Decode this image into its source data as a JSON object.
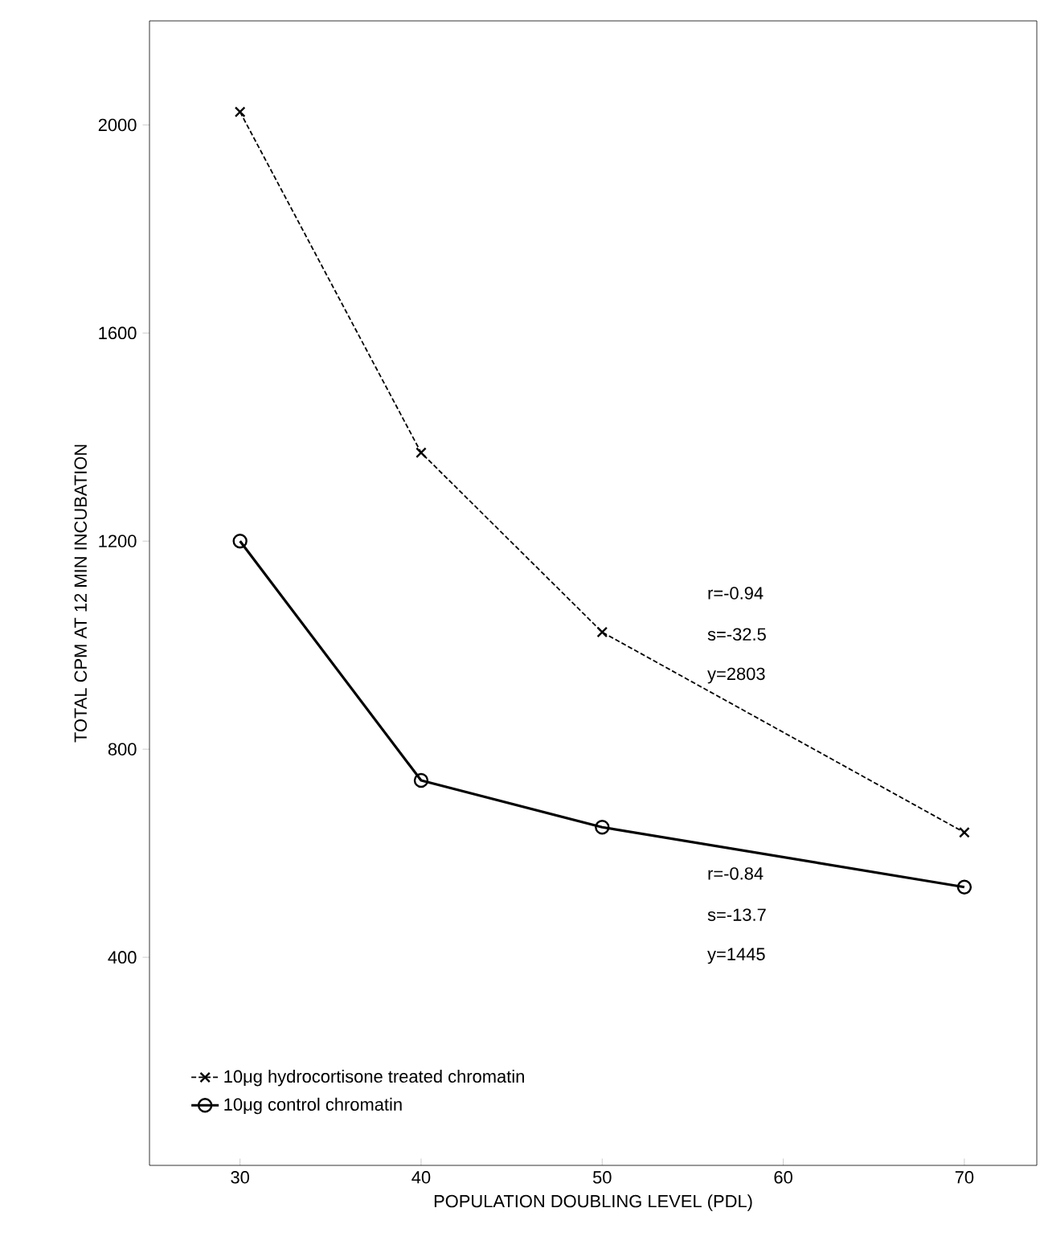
{
  "chart_data": {
    "type": "line",
    "xlabel": "POPULATION DOUBLING LEVEL (PDL)",
    "ylabel": "TOTAL CPM AT 12 MIN INCUBATION",
    "x": [
      30,
      40,
      50,
      70
    ],
    "xlim": [
      25,
      74
    ],
    "xticks": [
      30,
      40,
      50,
      60,
      70
    ],
    "ylim": [
      0,
      2200
    ],
    "yticks": [
      400,
      800,
      1200,
      1600,
      2000
    ],
    "legend": "bottom left",
    "grid": false,
    "series": [
      {
        "name": "10μg hydrocortisone treated chromatin",
        "color": "#000000",
        "values": [
          2025,
          1370,
          1025,
          640
        ],
        "marker": "cross",
        "line_style": "dashed"
      },
      {
        "name": "10μg control chromatin",
        "color": "#000000",
        "values": [
          1200,
          740,
          650,
          535
        ],
        "marker": "circle",
        "line_style": "solid"
      }
    ],
    "annotations": [
      "r=-0.94",
      "s=-32.5",
      "y=2803",
      "r=-0.84",
      "s=-13.7",
      "y=1445"
    ]
  }
}
